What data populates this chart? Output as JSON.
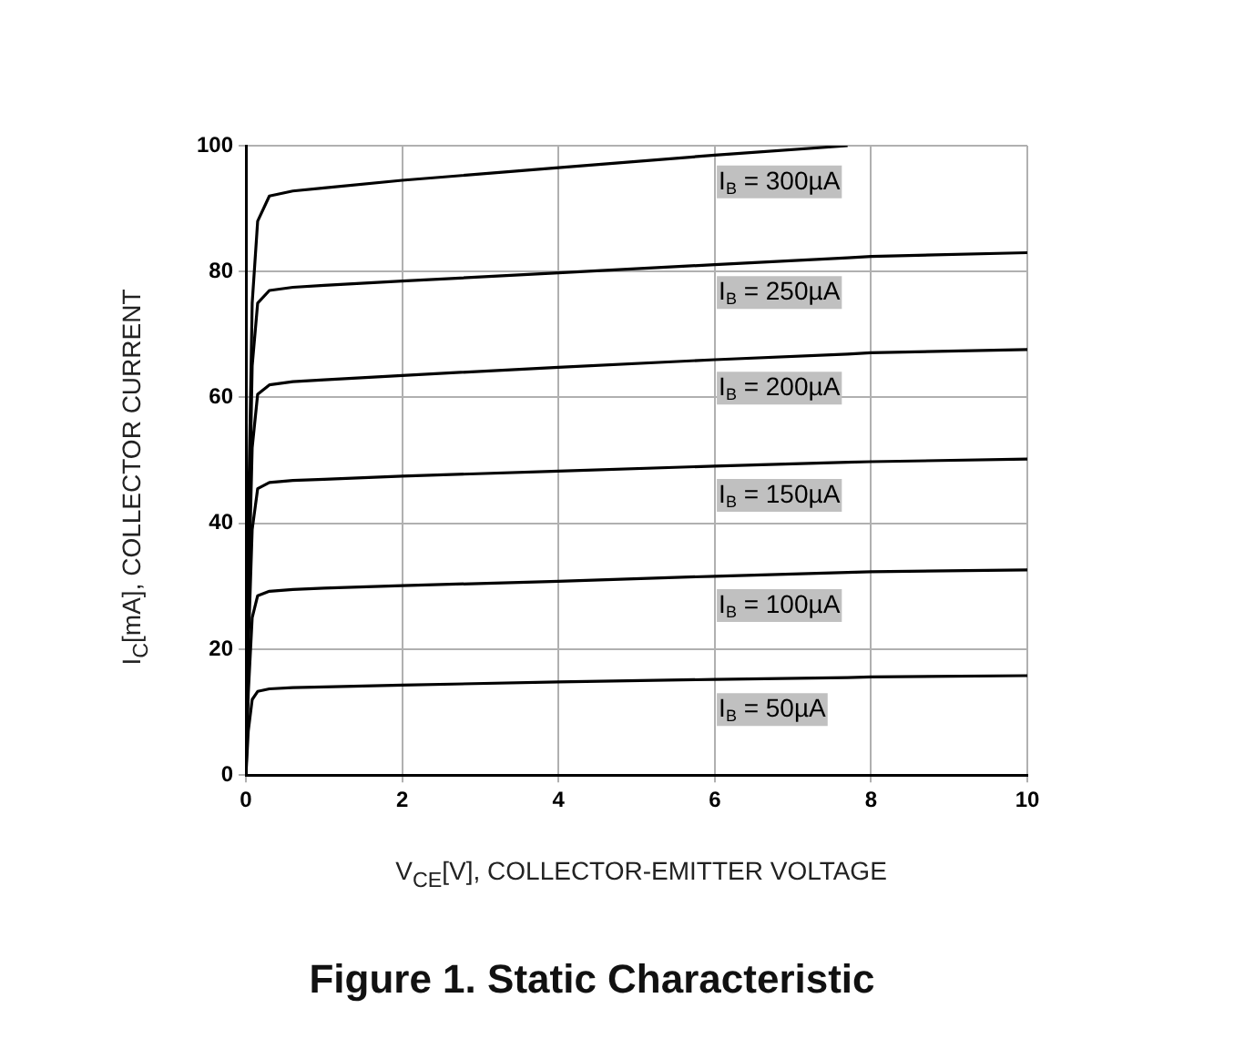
{
  "chart_data": {
    "type": "line",
    "title": "Figure 1. Static Characteristic",
    "xlabel": "V$_{CE}$[V], COLLECTOR-EMITTER VOLTAGE",
    "ylabel": "I$_{C}$[mA], COLLECTOR CURRENT",
    "x": [
      0,
      0.03,
      0.08,
      0.15,
      0.3,
      0.6,
      1,
      2,
      4,
      6,
      7.7,
      8,
      10
    ],
    "series": [
      {
        "name": "I$_{B}$ = 300µA",
        "color": "#000000",
        "values": [
          0,
          40,
          75,
          88,
          92,
          92.8,
          93.3,
          94.5,
          96.5,
          98.5,
          100,
          null,
          null
        ]
      },
      {
        "name": "I$_{B}$ = 250µA",
        "color": "#000000",
        "values": [
          0,
          33,
          65,
          75,
          77,
          77.5,
          77.8,
          78.5,
          79.8,
          81.1,
          82.2,
          82.4,
          83
        ]
      },
      {
        "name": "I$_{B}$ = 200µA",
        "color": "#000000",
        "values": [
          0,
          27,
          52,
          60.5,
          62,
          62.5,
          62.8,
          63.5,
          64.8,
          66,
          66.9,
          67.1,
          67.6
        ]
      },
      {
        "name": "I$_{B}$ = 150µA",
        "color": "#000000",
        "values": [
          0,
          20,
          39,
          45.5,
          46.5,
          46.8,
          47,
          47.5,
          48.3,
          49.1,
          49.7,
          49.8,
          50.2
        ]
      },
      {
        "name": "I$_{B}$ = 100µA",
        "color": "#000000",
        "values": [
          0,
          13,
          25,
          28.5,
          29.2,
          29.5,
          29.7,
          30.1,
          30.8,
          31.6,
          32.2,
          32.3,
          32.6
        ]
      },
      {
        "name": "I$_{B}$ = 50µA",
        "color": "#000000",
        "values": [
          0,
          7,
          12,
          13.3,
          13.7,
          13.9,
          14,
          14.3,
          14.8,
          15.2,
          15.5,
          15.6,
          15.8
        ]
      }
    ],
    "xlim": [
      0,
      10
    ],
    "xticks": [
      0,
      2,
      4,
      6,
      8,
      10
    ],
    "ylim": [
      0,
      100
    ],
    "yticks": [
      0,
      20,
      40,
      60,
      80,
      100
    ],
    "grid": true,
    "legend": false,
    "marker": "none",
    "line_style": "solid"
  }
}
